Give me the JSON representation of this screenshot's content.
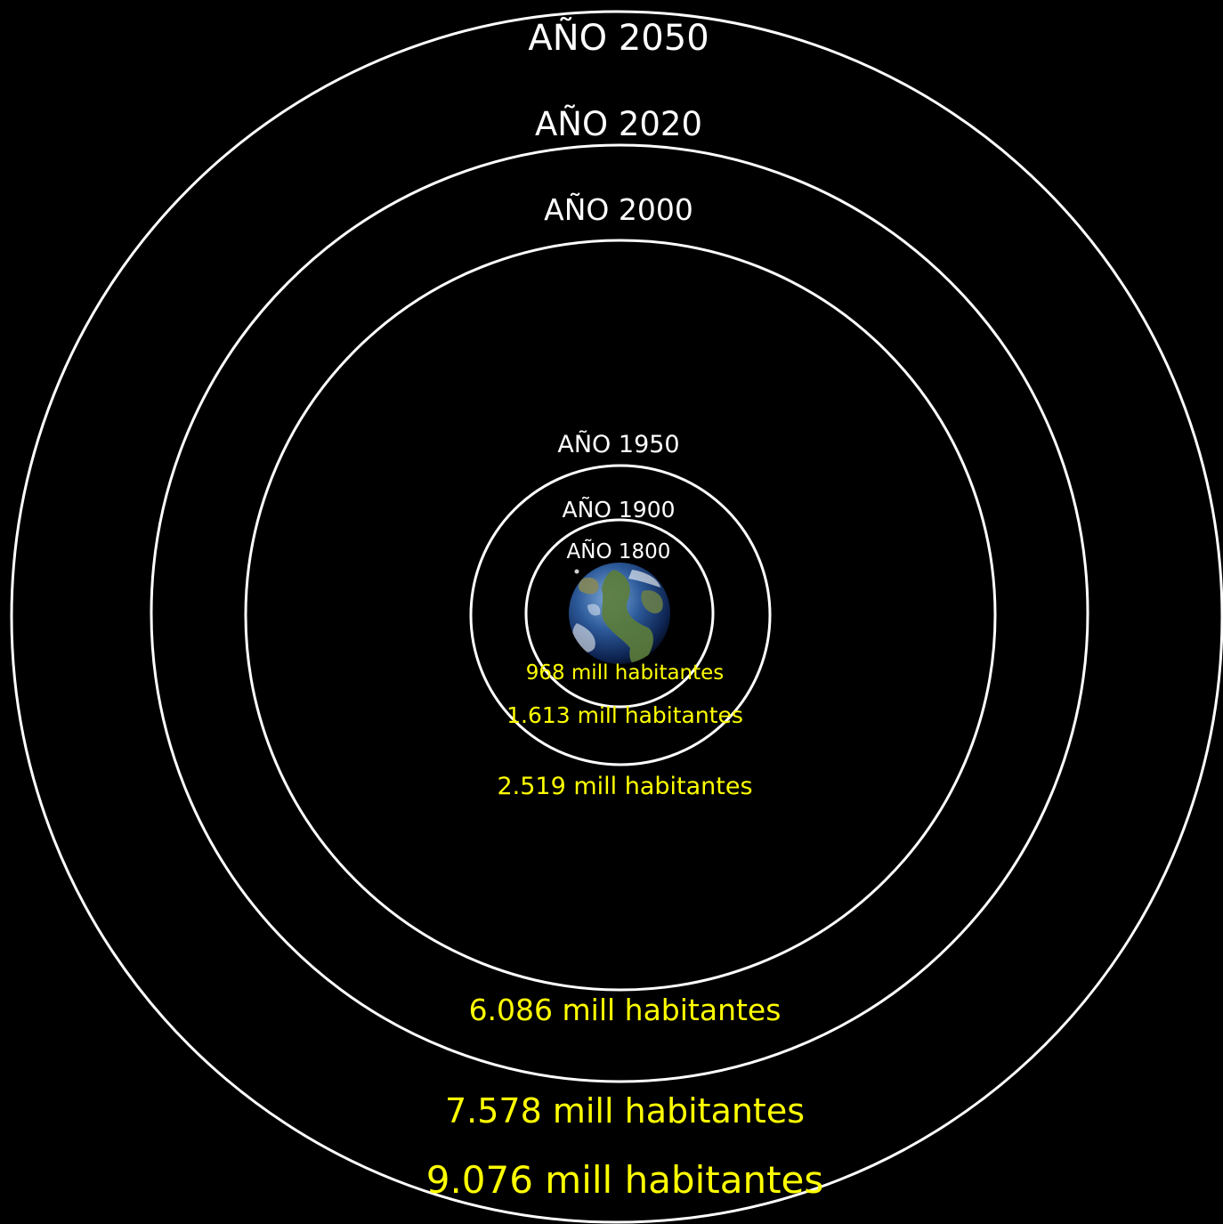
{
  "colors": {
    "background": "#000000",
    "ring": "#ffffff",
    "year_text": "#ffffff",
    "population_text": "#ffff00"
  },
  "center_icon": "earth-globe-icon",
  "rings": [
    {
      "year_label": "AÑO 1800",
      "population_label": "968 mill habitantes",
      "population_millions": 968
    },
    {
      "year_label": "AÑO 1900",
      "population_label": "1.613 mill habitantes",
      "population_millions": 1613
    },
    {
      "year_label": "AÑO 1950",
      "population_label": "2.519 mill habitantes",
      "population_millions": 2519
    },
    {
      "year_label": "AÑO 2000",
      "population_label": "6.086 mill habitantes",
      "population_millions": 6086
    },
    {
      "year_label": "AÑO 2020",
      "population_label": "7.578 mill habitantes",
      "population_millions": 7578
    },
    {
      "year_label": "AÑO 2050",
      "population_label": "9.076 mill habitantes",
      "population_millions": 9076
    }
  ]
}
